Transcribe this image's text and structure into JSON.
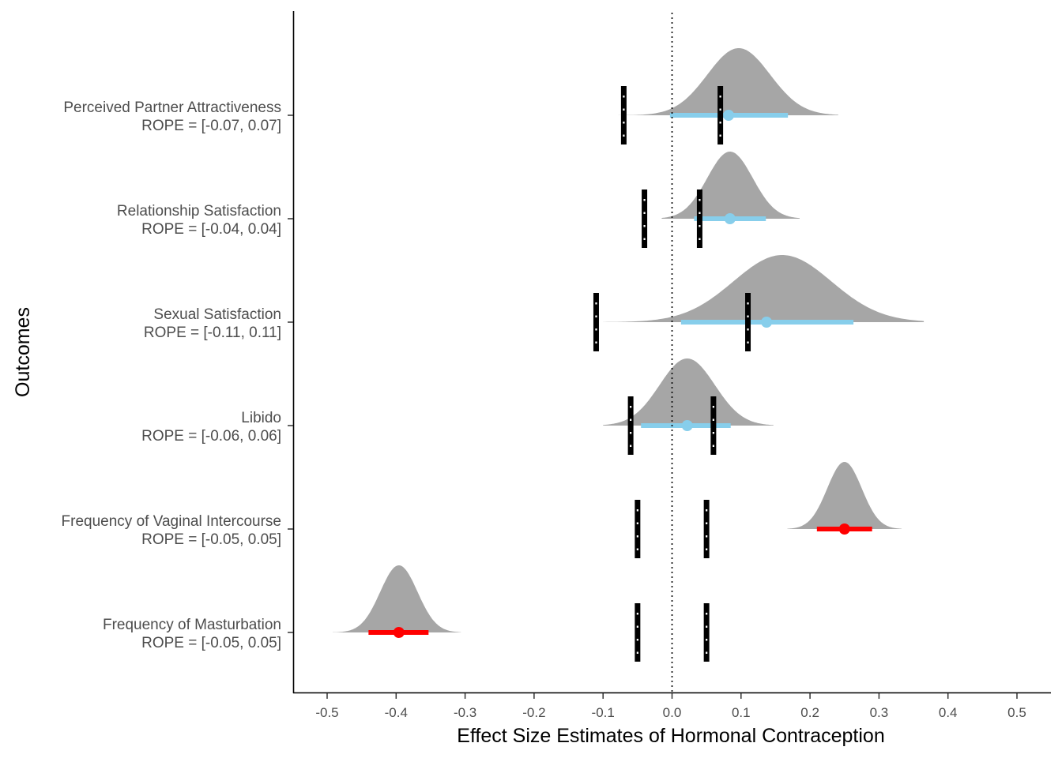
{
  "chart_data": {
    "type": "density-interval",
    "xlabel": "Effect Size Estimates of Hormonal Contraception",
    "ylabel": "Outcomes",
    "xlim": [
      -0.55,
      0.55
    ],
    "x_ticks": [
      -0.5,
      -0.4,
      -0.3,
      -0.2,
      -0.1,
      0.0,
      0.1,
      0.2,
      0.3,
      0.4,
      0.5
    ],
    "x_tick_labels": [
      "-0.5",
      "-0.4",
      "-0.3",
      "-0.2",
      "-0.1",
      "0.0",
      "0.1",
      "0.2",
      "0.3",
      "0.4",
      "0.5"
    ],
    "reference_line": 0,
    "grid": false,
    "colors": {
      "density": "#a6a6a6",
      "interval_crosses_rope": "#87ceeb",
      "interval_outside_rope": "#ff0000",
      "rope_line": "#000000",
      "rope_dash": "#ffffff"
    },
    "outcomes": [
      {
        "label_line1": "Perceived Partner Attractiveness",
        "label_line2": "ROPE = [-0.07, 0.07]",
        "rope": [
          -0.07,
          0.07
        ],
        "estimate": 0.082,
        "interval": [
          -0.003,
          0.168
        ],
        "density_range": [
          -0.078,
          0.241
        ],
        "density_sd": 0.048,
        "density_skew": 0.4,
        "color_key": "interval_crosses_rope"
      },
      {
        "label_line1": "Relationship Satisfaction",
        "label_line2": "ROPE = [-0.04, 0.04]",
        "rope": [
          -0.04,
          0.04
        ],
        "estimate": 0.084,
        "interval": [
          0.032,
          0.136
        ],
        "density_range": [
          -0.015,
          0.185
        ],
        "density_sd": 0.033,
        "density_skew": 0.0,
        "color_key": "interval_crosses_rope"
      },
      {
        "label_line1": "Sexual Satisfaction",
        "label_line2": "ROPE = [-0.11, 0.11]",
        "rope": [
          -0.11,
          0.11
        ],
        "estimate": 0.137,
        "interval": [
          0.013,
          0.263
        ],
        "density_range": [
          -0.1,
          0.365
        ],
        "density_sd": 0.075,
        "density_skew": 0.4,
        "color_key": "interval_crosses_rope"
      },
      {
        "label_line1": "Libido",
        "label_line2": "ROPE = [-0.06, 0.06]",
        "rope": [
          -0.06,
          0.06
        ],
        "estimate": 0.022,
        "interval": [
          -0.045,
          0.085
        ],
        "density_range": [
          -0.1,
          0.147
        ],
        "density_sd": 0.04,
        "density_skew": 0.0,
        "color_key": "interval_crosses_rope"
      },
      {
        "label_line1": "Frequency of Vaginal Intercourse",
        "label_line2": "ROPE = [-0.05, 0.05]",
        "rope": [
          -0.05,
          0.05
        ],
        "estimate": 0.25,
        "interval": [
          0.21,
          0.29
        ],
        "density_range": [
          0.167,
          0.333
        ],
        "density_sd": 0.025,
        "density_skew": 0.0,
        "color_key": "interval_outside_rope"
      },
      {
        "label_line1": "Frequency of Masturbation",
        "label_line2": "ROPE = [-0.05, 0.05]",
        "rope": [
          -0.05,
          0.05
        ],
        "estimate": -0.396,
        "interval": [
          -0.44,
          -0.353
        ],
        "density_range": [
          -0.492,
          -0.306
        ],
        "density_sd": 0.027,
        "density_skew": 0.0,
        "color_key": "interval_outside_rope"
      }
    ]
  }
}
